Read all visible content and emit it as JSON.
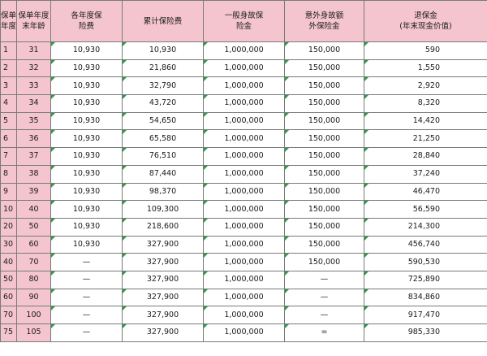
{
  "headers": [
    "保单\n年度",
    "保单年度\n末年龄",
    "各年度保\n险费",
    "累计保险费",
    "一般身故保\n险金",
    "意外身故额\n外保险金",
    "退保金\n(年末现金价值)"
  ],
  "rows": [
    [
      "1",
      "31",
      "10,930",
      "10,930",
      "1,000,000",
      "150,000",
      "590"
    ],
    [
      "2",
      "32",
      "10,930",
      "21,860",
      "1,000,000",
      "150,000",
      "1,550"
    ],
    [
      "3",
      "33",
      "10,930",
      "32,790",
      "1,000,000",
      "150,000",
      "2,920"
    ],
    [
      "4",
      "34",
      "10,930",
      "43,720",
      "1,000,000",
      "150,000",
      "8,320"
    ],
    [
      "5",
      "35",
      "10,930",
      "54,650",
      "1,000,000",
      "150,000",
      "14,420"
    ],
    [
      "6",
      "36",
      "10,930",
      "65,580",
      "1,000,000",
      "150,000",
      "21,250"
    ],
    [
      "7",
      "37",
      "10,930",
      "76,510",
      "1,000,000",
      "150,000",
      "28,840"
    ],
    [
      "8",
      "38",
      "10,930",
      "87,440",
      "1,000,000",
      "150,000",
      "37,240"
    ],
    [
      "9",
      "39",
      "10,930",
      "98,370",
      "1,000,000",
      "150,000",
      "46,470"
    ],
    [
      "10",
      "40",
      "10,930",
      "109,300",
      "1,000,000",
      "150,000",
      "56,590"
    ],
    [
      "20",
      "50",
      "10,930",
      "218,600",
      "1,000,000",
      "150,000",
      "214,300"
    ],
    [
      "30",
      "60",
      "10,930",
      "327,900",
      "1,000,000",
      "150,000",
      "456,740"
    ],
    [
      "40",
      "70",
      "—",
      "327,900",
      "1,000,000",
      "150,000",
      "590,530"
    ],
    [
      "50",
      "80",
      "—",
      "327,900",
      "1,000,000",
      "—",
      "725,890"
    ],
    [
      "60",
      "90",
      "—",
      "327,900",
      "1,000,000",
      "—",
      "834,860"
    ],
    [
      "70",
      "100",
      "—",
      "327,900",
      "1,000,000",
      "—",
      "917,470"
    ],
    [
      "75",
      "105",
      "—",
      "327,900",
      "1,000,000",
      "=",
      "985,330"
    ]
  ]
}
